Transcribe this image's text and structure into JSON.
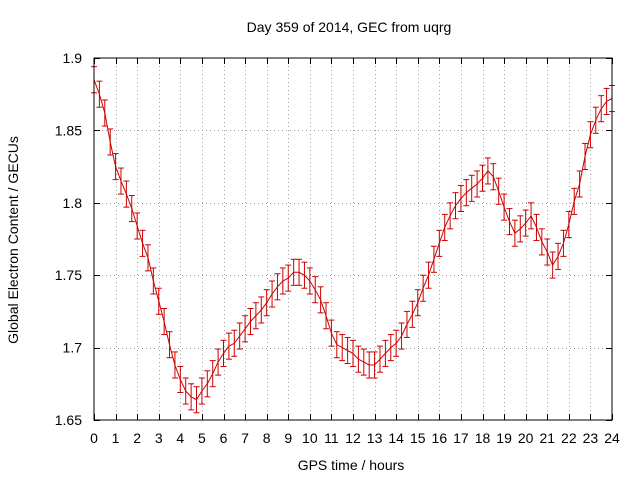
{
  "chart_data": {
    "type": "line",
    "title": "Day 359 of 2014, GEC from uqrg",
    "xlabel": "GPS time / hours",
    "ylabel": "Global Electron Content / GECUs",
    "xlim": [
      0,
      24
    ],
    "ylim": [
      1.65,
      1.9
    ],
    "grid": true,
    "x_ticks": [
      "0",
      "1",
      "2",
      "3",
      "4",
      "5",
      "6",
      "7",
      "8",
      "9",
      "10",
      "11",
      "12",
      "13",
      "14",
      "15",
      "16",
      "17",
      "18",
      "19",
      "20",
      "21",
      "22",
      "23",
      "24"
    ],
    "y_ticks": [
      {
        "value": 1.65,
        "label": "1.65"
      },
      {
        "value": 1.7,
        "label": "1.7"
      },
      {
        "value": 1.75,
        "label": "1.75"
      },
      {
        "value": 1.8,
        "label": "1.8"
      },
      {
        "value": 1.85,
        "label": "1.85"
      },
      {
        "value": 1.9,
        "label": "1.9"
      }
    ],
    "series_color": "#cc0000",
    "error": 0.009,
    "x": [
      0,
      0.25,
      0.5,
      0.75,
      1,
      1.25,
      1.5,
      1.75,
      2,
      2.25,
      2.5,
      2.75,
      3,
      3.25,
      3.5,
      3.75,
      4,
      4.25,
      4.5,
      4.75,
      5,
      5.25,
      5.5,
      5.75,
      6,
      6.25,
      6.5,
      6.75,
      7,
      7.25,
      7.5,
      7.75,
      8,
      8.25,
      8.5,
      8.75,
      9,
      9.25,
      9.5,
      9.75,
      10,
      10.25,
      10.5,
      10.75,
      11,
      11.25,
      11.5,
      11.75,
      12,
      12.25,
      12.5,
      12.75,
      13,
      13.25,
      13.5,
      13.75,
      14,
      14.25,
      14.5,
      14.75,
      15,
      15.25,
      15.5,
      15.75,
      16,
      16.25,
      16.5,
      16.75,
      17,
      17.25,
      17.5,
      17.75,
      18,
      18.25,
      18.5,
      18.75,
      19,
      19.25,
      19.5,
      19.75,
      20,
      20.25,
      20.5,
      20.75,
      21,
      21.25,
      21.5,
      21.75,
      22,
      22.25,
      22.5,
      22.75,
      23,
      23.25,
      23.5,
      23.75,
      24
    ],
    "y": [
      1.885,
      1.875,
      1.862,
      1.842,
      1.825,
      1.815,
      1.806,
      1.796,
      1.784,
      1.772,
      1.762,
      1.746,
      1.732,
      1.718,
      1.702,
      1.688,
      1.678,
      1.67,
      1.666,
      1.664,
      1.67,
      1.675,
      1.682,
      1.69,
      1.696,
      1.701,
      1.703,
      1.708,
      1.713,
      1.718,
      1.722,
      1.726,
      1.731,
      1.737,
      1.742,
      1.746,
      1.748,
      1.752,
      1.752,
      1.75,
      1.746,
      1.74,
      1.733,
      1.722,
      1.71,
      1.702,
      1.7,
      1.698,
      1.696,
      1.692,
      1.69,
      1.688,
      1.688,
      1.692,
      1.696,
      1.7,
      1.703,
      1.708,
      1.716,
      1.723,
      1.731,
      1.741,
      1.75,
      1.761,
      1.772,
      1.783,
      1.791,
      1.798,
      1.803,
      1.807,
      1.81,
      1.813,
      1.817,
      1.822,
      1.818,
      1.808,
      1.797,
      1.787,
      1.779,
      1.782,
      1.786,
      1.791,
      1.783,
      1.773,
      1.766,
      1.757,
      1.763,
      1.772,
      1.785,
      1.801,
      1.813,
      1.832,
      1.847,
      1.857,
      1.865,
      1.87,
      1.872
    ]
  }
}
